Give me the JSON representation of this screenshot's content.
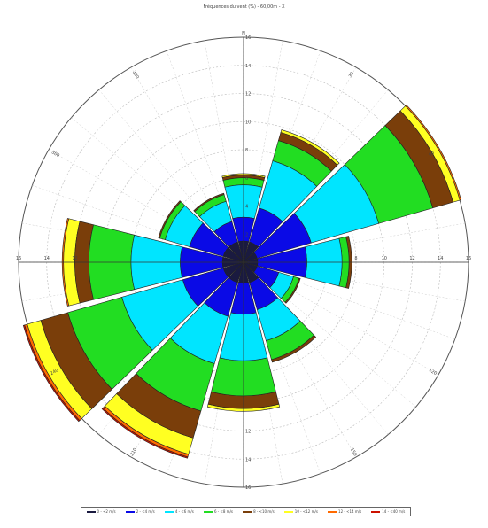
{
  "chart_data": {
    "type": "wind-rose",
    "title": "Fréquences du vent (%) - 60,00m - X",
    "direction_labels": {
      "north": "N"
    },
    "radial_range": [
      0,
      16
    ],
    "radial_tick_labels": [
      "2",
      "4",
      "6",
      "8",
      "10",
      "12",
      "14",
      "16"
    ],
    "axis_tick_labels": {
      "north": [
        "2",
        "4",
        "6",
        "8",
        "10",
        "12",
        "14",
        "16"
      ],
      "east": [
        "8",
        "10",
        "12",
        "14",
        "16"
      ],
      "south": [
        "12",
        "14",
        "16"
      ],
      "west": [
        "12",
        "14",
        "16"
      ]
    },
    "angular_labels": [
      "30",
      "60",
      "120",
      "150",
      "210",
      "240",
      "300",
      "330"
    ],
    "grid": true,
    "legend_position": "bottom",
    "speed_bins": [
      {
        "name": "0 - <2 m/s",
        "color": "#1a1a40"
      },
      {
        "name": "2 - <4 m/s",
        "color": "#0a0ae6"
      },
      {
        "name": "4 - <6 m/s",
        "color": "#00e5ff"
      },
      {
        "name": "6 - <8 m/s",
        "color": "#22dd22"
      },
      {
        "name": "8 - <10 m/s",
        "color": "#7a3e0a"
      },
      {
        "name": "10 - <12 m/s",
        "color": "#ffff22"
      },
      {
        "name": "12 - <14 m/s",
        "color": "#ff6a00"
      },
      {
        "name": "14 - <40 m/s",
        "color": "#cc1100"
      }
    ],
    "sectors": [
      {
        "direction": 0,
        "cumulative": [
          1.5,
          3.2,
          5.5,
          6.0,
          6.2,
          6.3,
          6.3,
          6.3
        ]
      },
      {
        "direction": 30,
        "cumulative": [
          1.5,
          4.0,
          7.5,
          9.0,
          9.6,
          9.8,
          9.8,
          9.8
        ]
      },
      {
        "direction": 60,
        "cumulative": [
          1.0,
          5.0,
          10.0,
          14.0,
          15.5,
          16.0,
          16.1,
          16.1
        ]
      },
      {
        "direction": 90,
        "cumulative": [
          1.0,
          4.5,
          7.0,
          7.5,
          7.7,
          7.7,
          7.7,
          7.7
        ]
      },
      {
        "direction": 120,
        "cumulative": [
          1.0,
          2.6,
          3.7,
          4.1,
          4.2,
          4.2,
          4.2,
          4.2
        ]
      },
      {
        "direction": 150,
        "cumulative": [
          1.5,
          3.5,
          5.8,
          7.2,
          7.4,
          7.4,
          7.4,
          7.4
        ]
      },
      {
        "direction": 180,
        "cumulative": [
          1.5,
          3.7,
          7.0,
          9.5,
          10.4,
          10.6,
          10.6,
          10.6
        ]
      },
      {
        "direction": 210,
        "cumulative": [
          1.5,
          4.0,
          7.5,
          11.0,
          13.0,
          14.2,
          14.4,
          14.5
        ]
      },
      {
        "direction": 240,
        "cumulative": [
          1.5,
          4.5,
          9.0,
          13.0,
          15.0,
          16.0,
          16.2,
          16.3
        ]
      },
      {
        "direction": 270,
        "cumulative": [
          1.5,
          4.5,
          8.0,
          11.0,
          12.0,
          12.8,
          12.9,
          12.9
        ]
      },
      {
        "direction": 300,
        "cumulative": [
          1.5,
          4.0,
          5.8,
          6.2,
          6.3,
          6.3,
          6.3,
          6.3
        ]
      },
      {
        "direction": 330,
        "cumulative": [
          1.5,
          3.0,
          4.5,
          5.0,
          5.1,
          5.1,
          5.1,
          5.1
        ]
      }
    ]
  }
}
